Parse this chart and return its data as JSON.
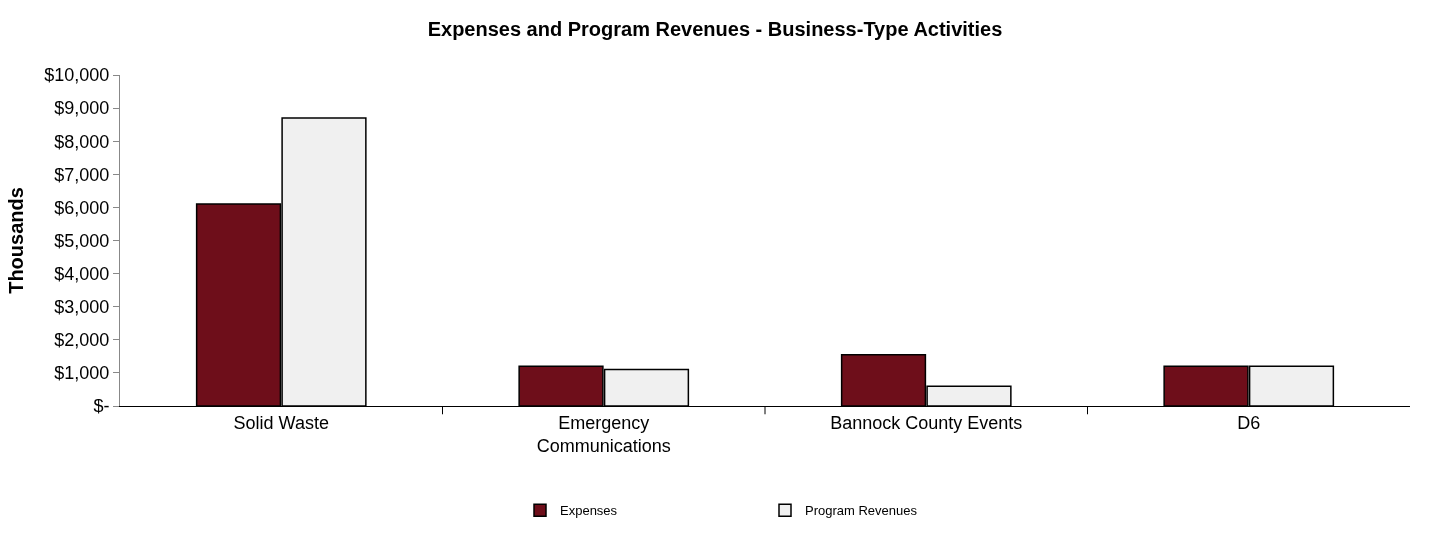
{
  "chart_data": {
    "type": "bar",
    "title": "Expenses and Program Revenues - Business-Type Activities",
    "ylabel": "Thousands",
    "categories": [
      "Solid Waste",
      "Emergency Communications",
      "Bannock County Events",
      "D6"
    ],
    "series": [
      {
        "name": "Expenses",
        "color": "#6e0e1a",
        "values": [
          6100,
          1200,
          1550,
          1200
        ]
      },
      {
        "name": "Program Revenues",
        "color": "#f0f0f0",
        "values": [
          8700,
          1100,
          600,
          1200
        ]
      }
    ],
    "ylim": [
      0,
      10000
    ],
    "yticks": [
      {
        "value": 0,
        "label": "$-"
      },
      {
        "value": 1000,
        "label": "$1,000"
      },
      {
        "value": 2000,
        "label": "$2,000"
      },
      {
        "value": 3000,
        "label": "$3,000"
      },
      {
        "value": 4000,
        "label": "$4,000"
      },
      {
        "value": 5000,
        "label": "$5,000"
      },
      {
        "value": 6000,
        "label": "$6,000"
      },
      {
        "value": 7000,
        "label": "$7,000"
      },
      {
        "value": 8000,
        "label": "$8,000"
      },
      {
        "value": 9000,
        "label": "$9,000"
      },
      {
        "value": 10000,
        "label": "$10,000"
      }
    ],
    "legend": "bottom"
  }
}
